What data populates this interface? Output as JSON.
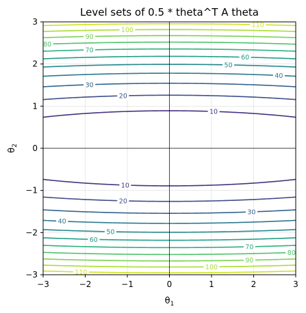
{
  "chart_data": {
    "type": "contour",
    "title": "Level sets of 0.5 * theta^T A theta",
    "xlabel": "θ1",
    "ylabel": "θ2",
    "xlim": [
      -3,
      3
    ],
    "ylim": [
      -3,
      3
    ],
    "x_ticks": [
      "−3",
      "−2",
      "−1",
      "0",
      "1",
      "2",
      "3"
    ],
    "y_ticks": [
      "−3",
      "−2",
      "−1",
      "0",
      "1",
      "2",
      "3"
    ],
    "grid": true,
    "reference_lines": {
      "x": 0,
      "y": 0
    },
    "function": {
      "a11": 0.7,
      "a22": 25.2
    },
    "levels": [
      10,
      20,
      30,
      40,
      50,
      60,
      70,
      80,
      90,
      100,
      110
    ],
    "level_colors": [
      "#46317e",
      "#3d4d8a",
      "#33638d",
      "#2b788e",
      "#23898e",
      "#1f9d8a",
      "#2ab07f",
      "#4ec36b",
      "#7ad151",
      "#aadc32",
      "#d2e21b"
    ],
    "label_positions": [
      {
        "level": 10,
        "x": [
          1.05,
          -1.05
        ]
      },
      {
        "level": 20,
        "x": [
          -1.1,
          -1.1
        ]
      },
      {
        "level": 30,
        "x": [
          -1.9,
          1.95
        ]
      },
      {
        "level": 40,
        "x": [
          2.6,
          -2.55
        ]
      },
      {
        "level": 50,
        "x": [
          1.4,
          -1.4
        ]
      },
      {
        "level": 60,
        "x": [
          1.8,
          -1.8
        ]
      },
      {
        "level": 70,
        "x": [
          -1.9,
          1.9
        ]
      },
      {
        "level": 80,
        "x": [
          -2.9,
          2.9
        ]
      },
      {
        "level": 90,
        "x": [
          -1.9,
          1.9
        ]
      },
      {
        "level": 100,
        "x": [
          -1.0,
          1.0
        ]
      },
      {
        "level": 110,
        "x": [
          2.1,
          -2.1
        ]
      }
    ]
  }
}
